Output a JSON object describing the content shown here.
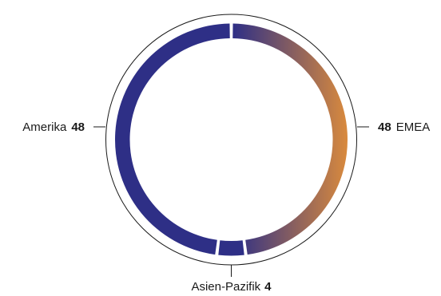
{
  "chart_data": {
    "type": "pie",
    "style": "donut",
    "title": "",
    "slices": [
      {
        "label": "EMEA",
        "value": 48,
        "color_start": "#2e2f86",
        "color_end": "#d98a3d"
      },
      {
        "label": "Asien-Pazifik",
        "value": 4,
        "color": "#2e2f86"
      },
      {
        "label": "Amerika",
        "value": 48,
        "color": "#2e2f86"
      }
    ],
    "legend": "leader-lines"
  },
  "colors": {
    "ring_primary": "#2e2f86",
    "ring_accent": "#d98a3d",
    "outline": "#1a1a1a"
  }
}
